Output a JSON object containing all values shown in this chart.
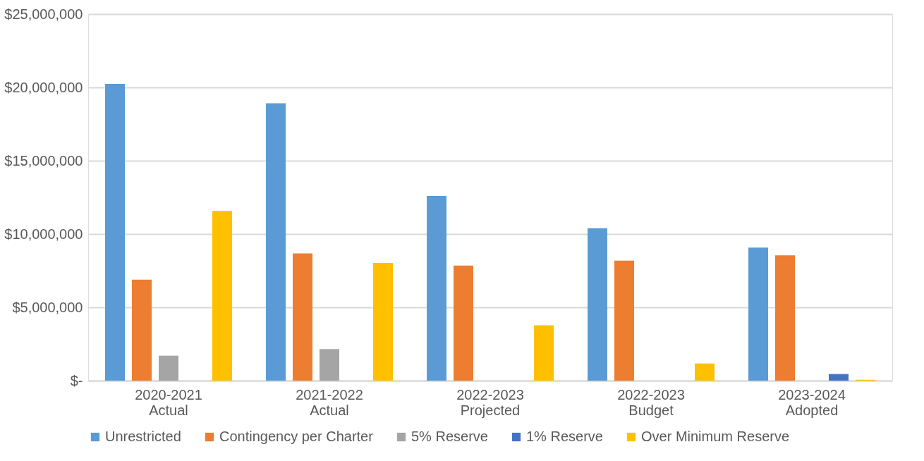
{
  "chart_data": {
    "type": "bar",
    "categories": [
      "2020-2021 Actual",
      "2021-2022 Actual",
      "2022-2023 Projected",
      "2022-2023 Budget",
      "2023-2024 Adopted"
    ],
    "series": [
      {
        "name": "Unrestricted",
        "color": "#5b9bd5",
        "values": [
          20240000,
          18920000,
          12600000,
          10400000,
          9070000
        ]
      },
      {
        "name": "Contingency per Charter",
        "color": "#ed7d31",
        "values": [
          6890000,
          8680000,
          7850000,
          8180000,
          8540000
        ]
      },
      {
        "name": "5% Reserve",
        "color": "#a5a5a5",
        "values": [
          1700000,
          2150000,
          null,
          null,
          null
        ]
      },
      {
        "name": "1% Reserve",
        "color": "#4472c4",
        "values": [
          null,
          null,
          null,
          null,
          450000
        ]
      },
      {
        "name": "Over Minimum Reserve",
        "color": "#ffc000",
        "values": [
          11570000,
          8030000,
          3770000,
          1170000,
          60000
        ]
      }
    ],
    "ylim": [
      0,
      25000000
    ],
    "yticks": [
      {
        "value": 0,
        "label": "$-"
      },
      {
        "value": 5000000,
        "label": "$5,000,000"
      },
      {
        "value": 10000000,
        "label": "$10,000,000"
      },
      {
        "value": 15000000,
        "label": "$15,000,000"
      },
      {
        "value": 20000000,
        "label": "$20,000,000"
      },
      {
        "value": 25000000,
        "label": "$25,000,000"
      }
    ],
    "grid": "y",
    "legend": "bottom"
  }
}
